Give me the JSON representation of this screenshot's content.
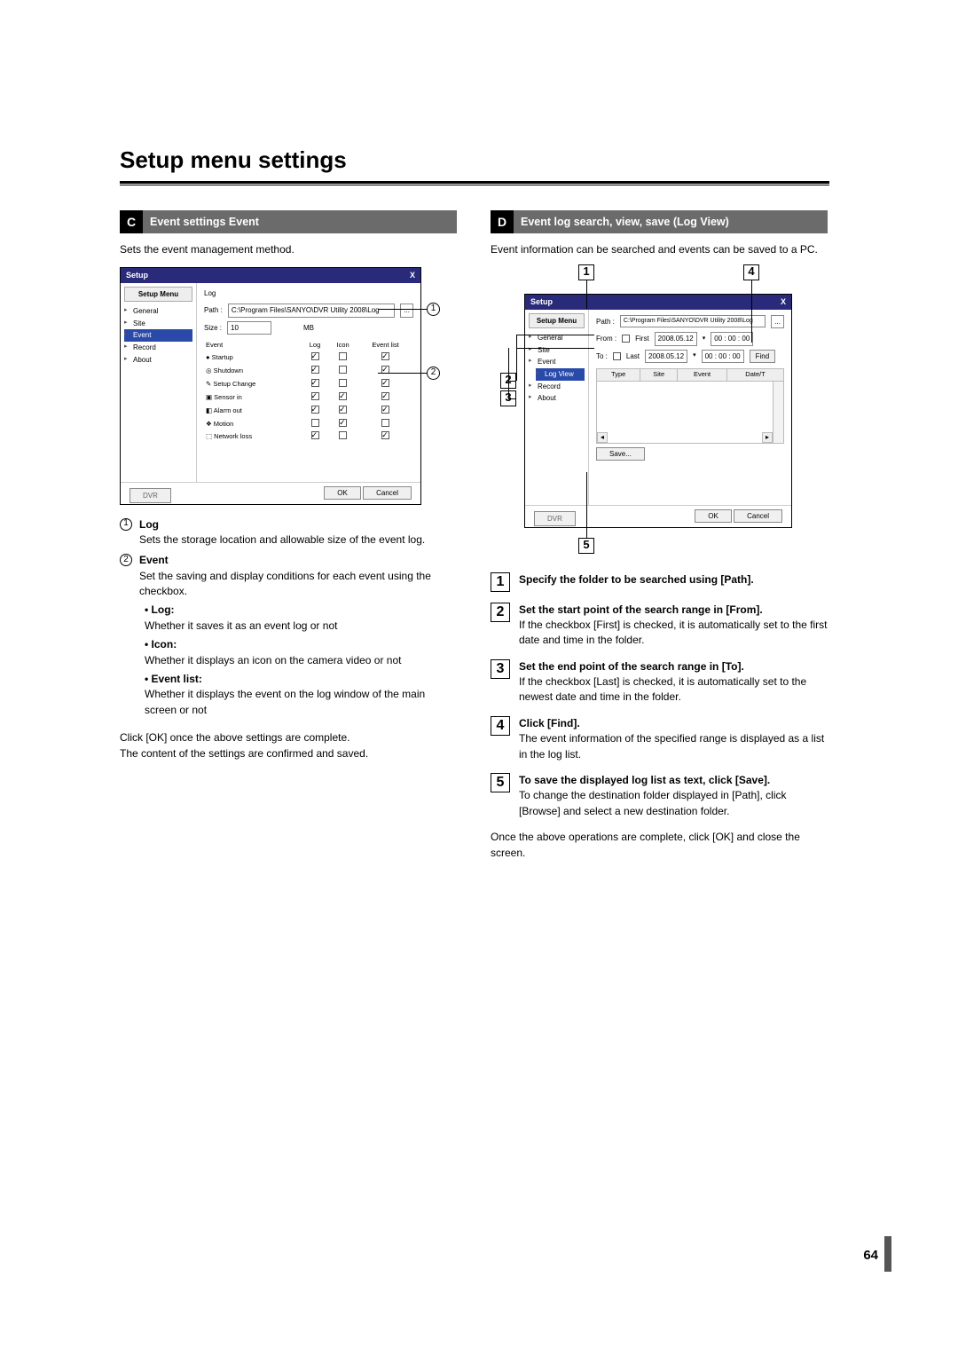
{
  "page_title": "Setup menu settings",
  "page_number": "64",
  "left": {
    "section_letter": "C",
    "section_title": "Event settings Event",
    "intro": "Sets the event management method.",
    "screenshot": {
      "titlebar": "Setup",
      "close": "X",
      "menu_heading": "Setup Menu",
      "tree": [
        "General",
        "Site",
        "Event",
        "Record",
        "About"
      ],
      "selected_tree": "Event",
      "log_label": "Log",
      "path_label": "Path :",
      "path_value": "C:\\Program Files\\SANYO\\DVR Utility 2008\\Log",
      "browse_btn": "...",
      "size_label": "Size :",
      "size_value": "10",
      "size_unit": "MB",
      "headers": [
        "Event",
        "Log",
        "Icon",
        "Event list"
      ],
      "rows": [
        {
          "name": "Startup",
          "icon": "●",
          "log": true,
          "iconc": false,
          "evl": true
        },
        {
          "name": "Shutdown",
          "icon": "◎",
          "log": true,
          "iconc": false,
          "evl": true
        },
        {
          "name": "Setup Change",
          "icon": "✎",
          "log": true,
          "iconc": false,
          "evl": true
        },
        {
          "name": "Sensor in",
          "icon": "▣",
          "log": true,
          "iconc": true,
          "evl": true
        },
        {
          "name": "Alarm out",
          "icon": "◧",
          "log": true,
          "iconc": true,
          "evl": true
        },
        {
          "name": "Motion",
          "icon": "❖",
          "log": false,
          "iconc": true,
          "evl": false
        },
        {
          "name": "Network loss",
          "icon": "⬚",
          "log": true,
          "iconc": false,
          "evl": true
        }
      ],
      "footer_left": "DVR",
      "ok": "OK",
      "cancel": "Cancel",
      "callout1": "1",
      "callout2": "2"
    },
    "items": [
      {
        "num": "1",
        "head": "Log",
        "body": "Sets the storage location and allowable size of the event log."
      },
      {
        "num": "2",
        "head": "Event",
        "body": "Set the saving and display conditions for each event using the checkbox.",
        "bullets": [
          {
            "h": "Log:",
            "b": "Whether it saves it as an event log or not"
          },
          {
            "h": "Icon:",
            "b": "Whether it displays an icon on the camera video or not"
          },
          {
            "h": "Event list:",
            "b": "Whether it displays the event on the log window of the main screen or not"
          }
        ]
      }
    ],
    "footer_para": "Click [OK] once the above settings are complete.\nThe content of the settings are confirmed and saved."
  },
  "right": {
    "section_letter": "D",
    "section_title": "Event log search, view, save (Log View)",
    "intro": "Event information can be searched and events can be saved to a PC.",
    "screenshot": {
      "titlebar": "Setup",
      "close": "X",
      "menu_heading": "Setup Menu",
      "tree": [
        "General",
        "Site",
        "Event",
        "Log View",
        "Record",
        "About"
      ],
      "selected_tree": "Log View",
      "path_label": "Path :",
      "path_value": "C:\\Program Files\\SANYO\\DVR Utility 2008\\Log",
      "browse_btn": "...",
      "from_label": "From :",
      "first_cb": "First",
      "from_date": "2008.05.12",
      "from_time": "00 : 00 : 00",
      "to_label": "To :",
      "last_cb": "Last",
      "to_date": "2008.05.12",
      "to_time": "00 : 00 : 00",
      "find_btn": "Find",
      "log_headers": [
        "Type",
        "Site",
        "Event",
        "Date/T"
      ],
      "save_btn": "Save...",
      "footer_left": "DVR",
      "ok": "OK",
      "cancel": "Cancel",
      "cb1": "1",
      "cb2": "2",
      "cb3": "3",
      "cb4": "4",
      "cb5": "5"
    },
    "steps": [
      {
        "n": "1",
        "h": "Specify the folder to be searched using [Path].",
        "b": ""
      },
      {
        "n": "2",
        "h": "Set the start point of the search range in [From].",
        "b": "If the checkbox [First] is checked, it is automatically set to the first date and time in the folder."
      },
      {
        "n": "3",
        "h": "Set the end point of the search range in [To].",
        "b": "If the checkbox [Last] is checked, it is automatically set to the newest date and time in the folder."
      },
      {
        "n": "4",
        "h": "Click [Find].",
        "b": "The event information of the specified range is displayed as a list in the log list."
      },
      {
        "n": "5",
        "h": "To save the displayed log list as text, click [Save].",
        "b": "To change the destination folder displayed in [Path], click [Browse] and select a new destination folder."
      }
    ],
    "footer_para": "Once the above operations are complete, click [OK] and close the screen."
  }
}
